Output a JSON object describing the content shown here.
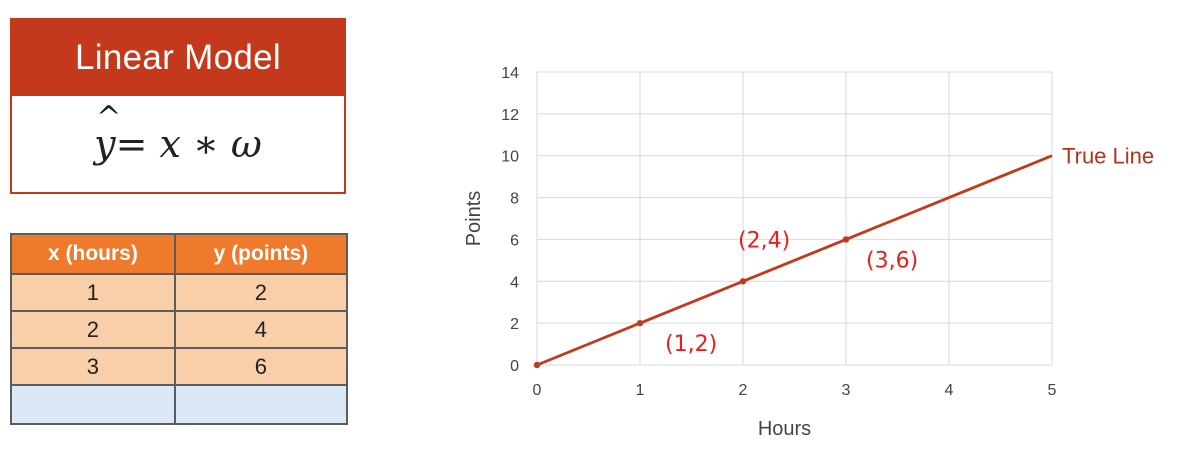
{
  "model": {
    "title": "Linear Model",
    "formula_lhs": "y",
    "formula_rhs": " = x ∗ ω"
  },
  "table": {
    "headers": [
      "x (hours)",
      "y (points)"
    ],
    "rows": [
      [
        "1",
        "2"
      ],
      [
        "2",
        "4"
      ],
      [
        "3",
        "6"
      ],
      [
        "",
        ""
      ]
    ]
  },
  "chart_data": {
    "type": "line",
    "xlabel": "Hours",
    "ylabel": "Points",
    "xlim": [
      0,
      5
    ],
    "ylim": [
      0,
      14
    ],
    "x_ticks": [
      0,
      1,
      2,
      3,
      4,
      5
    ],
    "y_ticks": [
      0,
      2,
      4,
      6,
      8,
      10,
      12,
      14
    ],
    "grid": true,
    "series": [
      {
        "name": "True Line",
        "color": "#c4391b",
        "x": [
          0,
          1,
          2,
          3,
          4,
          5
        ],
        "y": [
          0,
          2,
          4,
          6,
          8,
          10
        ],
        "markers_at": [
          0,
          1,
          2,
          3
        ]
      }
    ],
    "annotations": [
      {
        "text": "(1,2)",
        "x": 1,
        "y": 2
      },
      {
        "text": "(2,4)",
        "x": 2,
        "y": 4
      },
      {
        "text": "(3,6)",
        "x": 3,
        "y": 6
      }
    ]
  }
}
